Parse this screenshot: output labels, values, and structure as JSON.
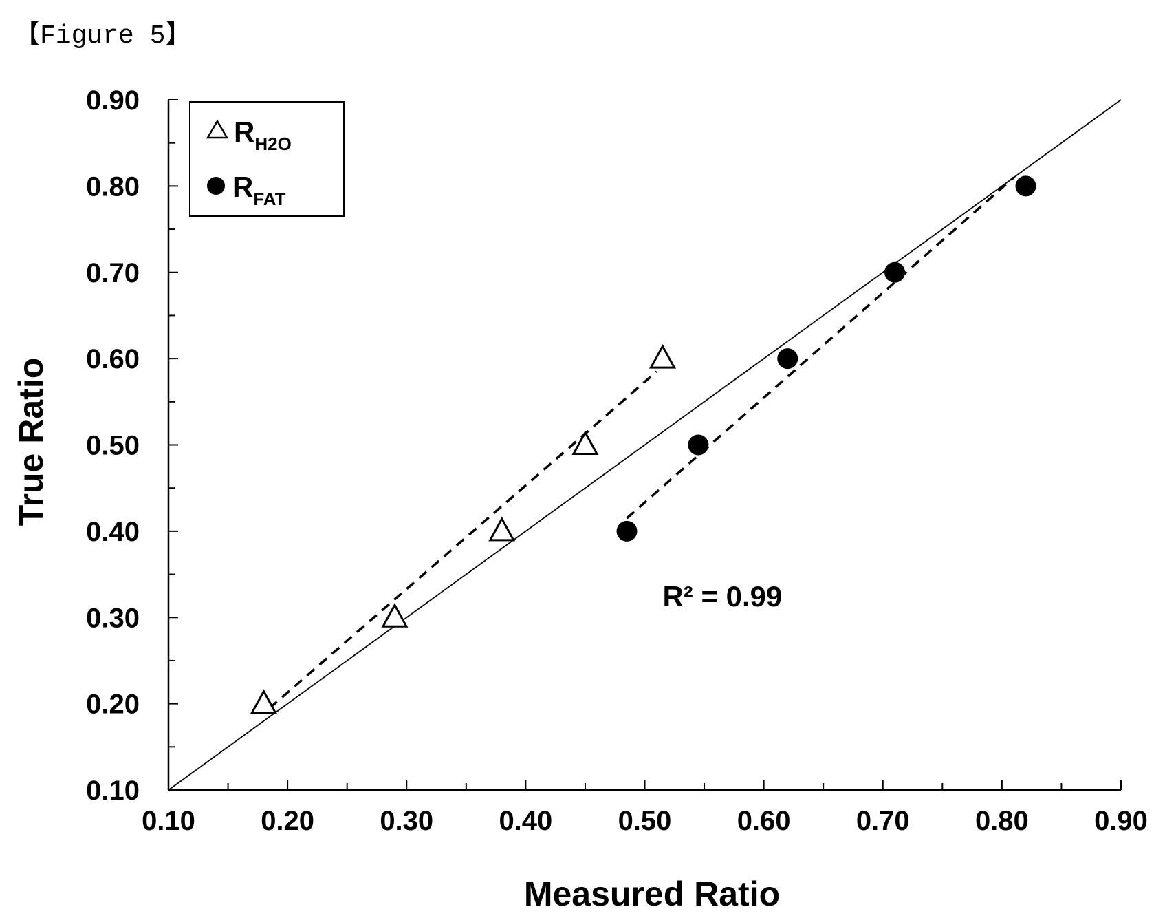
{
  "figure_caption": "【Figure 5】",
  "chart_data": {
    "type": "scatter",
    "xlabel": "Measured Ratio",
    "ylabel": "True Ratio",
    "xlim": [
      0.1,
      0.9
    ],
    "ylim": [
      0.1,
      0.9
    ],
    "x_ticks": [
      "0.10",
      "0.20",
      "0.30",
      "0.40",
      "0.50",
      "0.60",
      "0.70",
      "0.80",
      "0.90"
    ],
    "y_ticks": [
      "0.10",
      "0.20",
      "0.30",
      "0.40",
      "0.50",
      "0.60",
      "0.70",
      "0.80",
      "0.90"
    ],
    "legend_position": "top-left",
    "grid": false,
    "series": [
      {
        "name": "R",
        "subscript": "H2O",
        "marker": "open-triangle",
        "points": [
          [
            0.18,
            0.2
          ],
          [
            0.29,
            0.3
          ],
          [
            0.38,
            0.4
          ],
          [
            0.45,
            0.5
          ],
          [
            0.515,
            0.6
          ]
        ],
        "trendline": {
          "style": "dashed",
          "from": [
            0.185,
            0.195
          ],
          "to": [
            0.51,
            0.585
          ]
        }
      },
      {
        "name": "R",
        "subscript": "FAT",
        "marker": "filled-circle",
        "points": [
          [
            0.485,
            0.4
          ],
          [
            0.545,
            0.5
          ],
          [
            0.62,
            0.6
          ],
          [
            0.71,
            0.7
          ],
          [
            0.82,
            0.8
          ]
        ],
        "trendline": {
          "style": "dashed",
          "from": [
            0.485,
            0.415
          ],
          "to": [
            0.81,
            0.81
          ]
        }
      }
    ],
    "reference_line": {
      "style": "solid",
      "from": [
        0.1,
        0.1
      ],
      "to": [
        0.9,
        0.9
      ]
    },
    "annotation": "R² = 0.99",
    "annotation_position": [
      0.515,
      0.325
    ]
  }
}
